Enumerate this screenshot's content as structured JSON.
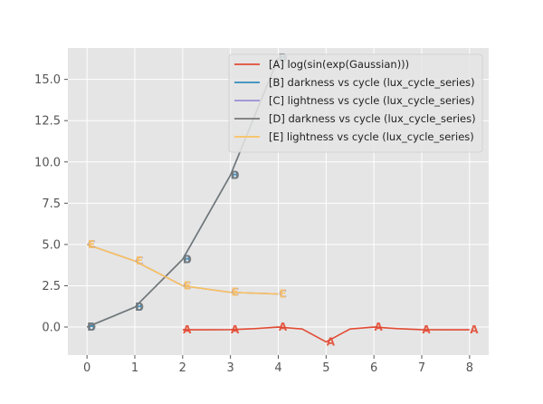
{
  "chart_data": {
    "type": "line",
    "title": "",
    "xlabel": "",
    "ylabel": "",
    "xlim": [
      -0.4,
      8.4
    ],
    "ylim": [
      -1.7,
      16.9
    ],
    "x_ticks": [
      0,
      1,
      2,
      3,
      4,
      5,
      6,
      7,
      8
    ],
    "x_tick_labels": [
      "0",
      "1",
      "2",
      "3",
      "4",
      "5",
      "6",
      "7",
      "8"
    ],
    "y_ticks": [
      0,
      2.5,
      5,
      7.5,
      10,
      12.5,
      15
    ],
    "y_tick_labels": [
      "0.0",
      "2.5",
      "5.0",
      "7.5",
      "10.0",
      "12.5",
      "15.0"
    ],
    "grid": true,
    "background": "#e5e5e5",
    "legend_position": "upper right",
    "series": [
      {
        "name": "[A] log(sin(exp(Gaussian)))",
        "marker": "A",
        "color": "#e24a33",
        "x": [
          2.0,
          2.5,
          3.0,
          3.5,
          4.0,
          4.5,
          5.0,
          5.5,
          6.0,
          6.5,
          7.0,
          7.5,
          8.0
        ],
        "y": [
          -0.17,
          -0.17,
          -0.16,
          -0.1,
          0.0,
          -0.12,
          -0.9,
          -0.12,
          0.0,
          -0.1,
          -0.16,
          -0.17,
          -0.17
        ],
        "marker_x": [
          2,
          3,
          4,
          5,
          6,
          7,
          8
        ],
        "marker_y": [
          -0.17,
          -0.16,
          0.0,
          -0.9,
          0.0,
          -0.16,
          -0.17
        ]
      },
      {
        "name": "[B] darkness vs cycle (lux_cycle_series)",
        "marker": "B",
        "color": "#348abd",
        "x": [
          0,
          1,
          2,
          3,
          4
        ],
        "y": [
          0,
          1.2,
          4.1,
          9.2,
          16.3
        ],
        "marker_x": [
          0,
          1,
          2,
          3,
          4
        ],
        "marker_y": [
          0,
          1.2,
          4.1,
          9.2,
          16.3
        ]
      },
      {
        "name": "[C] lightness vs cycle (lux_cycle_series)",
        "marker": "C",
        "color": "#988ed5",
        "x": [
          0,
          1,
          2,
          3,
          4
        ],
        "y": [
          5.0,
          4.0,
          2.5,
          2.1,
          2.0
        ],
        "marker_x": [
          0,
          1,
          2,
          3,
          4
        ],
        "marker_y": [
          5.0,
          4.0,
          2.5,
          2.1,
          2.0
        ]
      },
      {
        "name": "[D] darkness vs cycle (lux_cycle_series)",
        "marker": "D",
        "color": "#777777",
        "x": [
          0,
          1,
          2,
          3,
          4
        ],
        "y": [
          0,
          1.2,
          4.1,
          9.2,
          16.3
        ],
        "marker_x": [
          0,
          1,
          2,
          3,
          4
        ],
        "marker_y": [
          0,
          1.2,
          4.1,
          9.2,
          16.3
        ]
      },
      {
        "name": "[E] lightness vs cycle (lux_cycle_series)",
        "marker": "E",
        "color": "#fbc15e",
        "x": [
          0,
          1,
          2,
          3,
          4
        ],
        "y": [
          5.0,
          4.0,
          2.5,
          2.1,
          2.0
        ],
        "marker_x": [
          0,
          1,
          2,
          3,
          4
        ],
        "marker_y": [
          5.0,
          4.0,
          2.5,
          2.1,
          2.0
        ]
      }
    ]
  }
}
